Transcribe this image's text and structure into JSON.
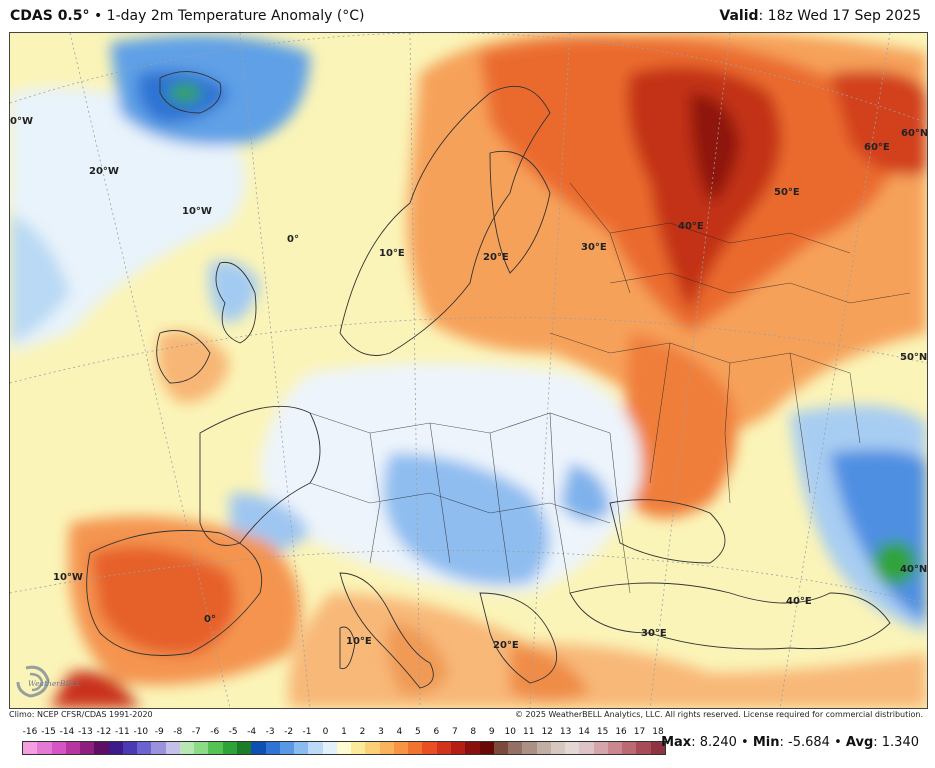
{
  "header": {
    "model": "CDAS 0.5°",
    "separator": "•",
    "product": "1-day 2m Temperature Anomaly (°C)",
    "valid_label": "Valid",
    "valid_value": ": 18z Wed 17 Sep 2025"
  },
  "footer": {
    "climo": "Climo: NCEP CFSR/CDAS 1991-2020",
    "copyright": "© 2025 WeatherBELL Analytics, LLC. All rights reserved. License required for commercial distribution."
  },
  "logo_text": "WeatherBELL",
  "colorbar": {
    "labels": [
      "-16",
      "-15",
      "-14",
      "-13",
      "-12",
      "-11",
      "-10",
      "-9",
      "-8",
      "-7",
      "-6",
      "-5",
      "-4",
      "-3",
      "-2",
      "-1",
      "0",
      "1",
      "2",
      "3",
      "4",
      "5",
      "6",
      "7",
      "8",
      "9",
      "10",
      "11",
      "12",
      "13",
      "14",
      "15",
      "16",
      "17",
      "18"
    ],
    "colors": [
      "#f59fe0",
      "#e47ad3",
      "#d455c4",
      "#b6359f",
      "#8e1f7f",
      "#5e0f63",
      "#3e1b8a",
      "#4a3ab4",
      "#6b63cf",
      "#9a92dd",
      "#c4c0ea",
      "#b8e7b3",
      "#8ddb86",
      "#54c353",
      "#2ea33a",
      "#1b7d2a",
      "#0d4fb3",
      "#2f73d4",
      "#5a98e3",
      "#8bbcef",
      "#bcdaf7",
      "#e2f0fb",
      "#fffbd0",
      "#fde99a",
      "#fcd077",
      "#f9b35c",
      "#f79545",
      "#f2732f",
      "#e84f22",
      "#d2331b",
      "#b51e15",
      "#8b0f0d",
      "#6a0808",
      "#7a4a3a",
      "#937063"
    ],
    "colors_extra": [
      "#ab9183",
      "#c2afa3",
      "#d6c7bf",
      "#e4d8d4",
      "#dec4c6",
      "#d4a6ab",
      "#c98890",
      "#bb6a74",
      "#a64b57",
      "#8f3441"
    ]
  },
  "stats": {
    "max_label": "Max",
    "max_value": ": 8.240",
    "min_label": "Min",
    "min_value": ": -5.684",
    "avg_label": "Avg",
    "avg_value": ": 1.340",
    "sep": " • "
  },
  "map_labels": {
    "lon_30w": "0°W",
    "lon_20w": "20°W",
    "lon_10w_north": "10°W",
    "lon_0_north": "0°",
    "lon_10e_north": "10°E",
    "lon_20e_north": "20°E",
    "lon_30e_north": "30°E",
    "lon_40e_north": "40°E",
    "lon_50e": "50°E",
    "lat_60e": "60°E",
    "lat_60n": "60°N",
    "lat_50n": "50°N",
    "lat_40n": "40°N",
    "lon_10w_south": "10°W",
    "lon_0_south": "0°",
    "lon_10e_south": "10°E",
    "lon_20e_south": "20°E",
    "lon_30e_south": "30°E",
    "lon_40e_south": "40°E"
  }
}
